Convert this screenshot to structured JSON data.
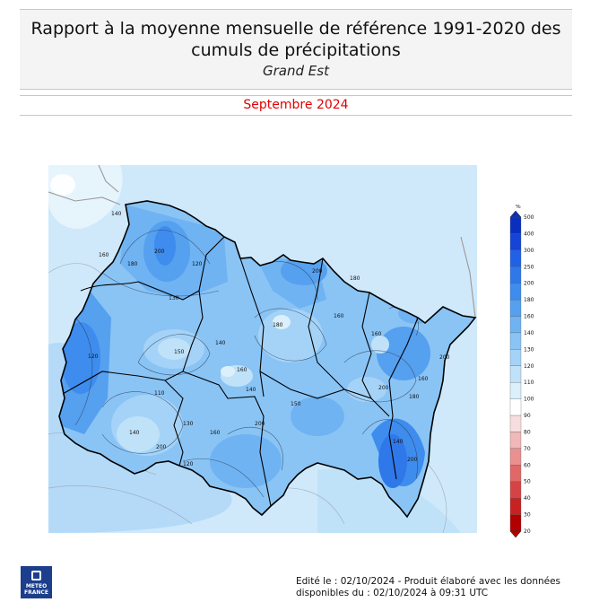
{
  "header": {
    "title_line1": "Rapport à la moyenne mensuelle de référence 1991-2020 des",
    "title_line2": "cumuls de précipitations",
    "region": "Grand Est",
    "period": "Septembre 2024"
  },
  "legend": {
    "unit": "%",
    "ticks": [
      "500",
      "400",
      "300",
      "250",
      "200",
      "180",
      "160",
      "140",
      "130",
      "120",
      "110",
      "100",
      "90",
      "80",
      "70",
      "60",
      "50",
      "40",
      "30",
      "20"
    ],
    "colors": [
      "#0a2fbf",
      "#1544d6",
      "#2061e6",
      "#2f78ea",
      "#3e8ced",
      "#55a0ef",
      "#6fb3f2",
      "#8ac4f5",
      "#a5d3f7",
      "#c0e2f9",
      "#dcf0fb",
      "#ffffff",
      "#f6dede",
      "#f0b8b8",
      "#e99090",
      "#e06868",
      "#d44444",
      "#c62222",
      "#b20000"
    ],
    "top_color": "#0a2fbf",
    "bottom_color": "#b20000"
  },
  "map": {
    "contour_labels": [
      "140",
      "160",
      "180",
      "200",
      "120",
      "130",
      "150",
      "140",
      "160",
      "180",
      "200",
      "160",
      "140",
      "120",
      "200",
      "130",
      "120",
      "180",
      "200",
      "160",
      "160",
      "200",
      "140",
      "200",
      "180",
      "160",
      "140",
      "150",
      "110",
      "200"
    ]
  },
  "footer": {
    "line1": "Edité le : 02/10/2024 - Produit élaboré avec les données",
    "line2": "disponibles du : 02/10/2024 à 09:31 UTC"
  },
  "logo": {
    "line1": "METEO",
    "line2": "FRANCE"
  }
}
